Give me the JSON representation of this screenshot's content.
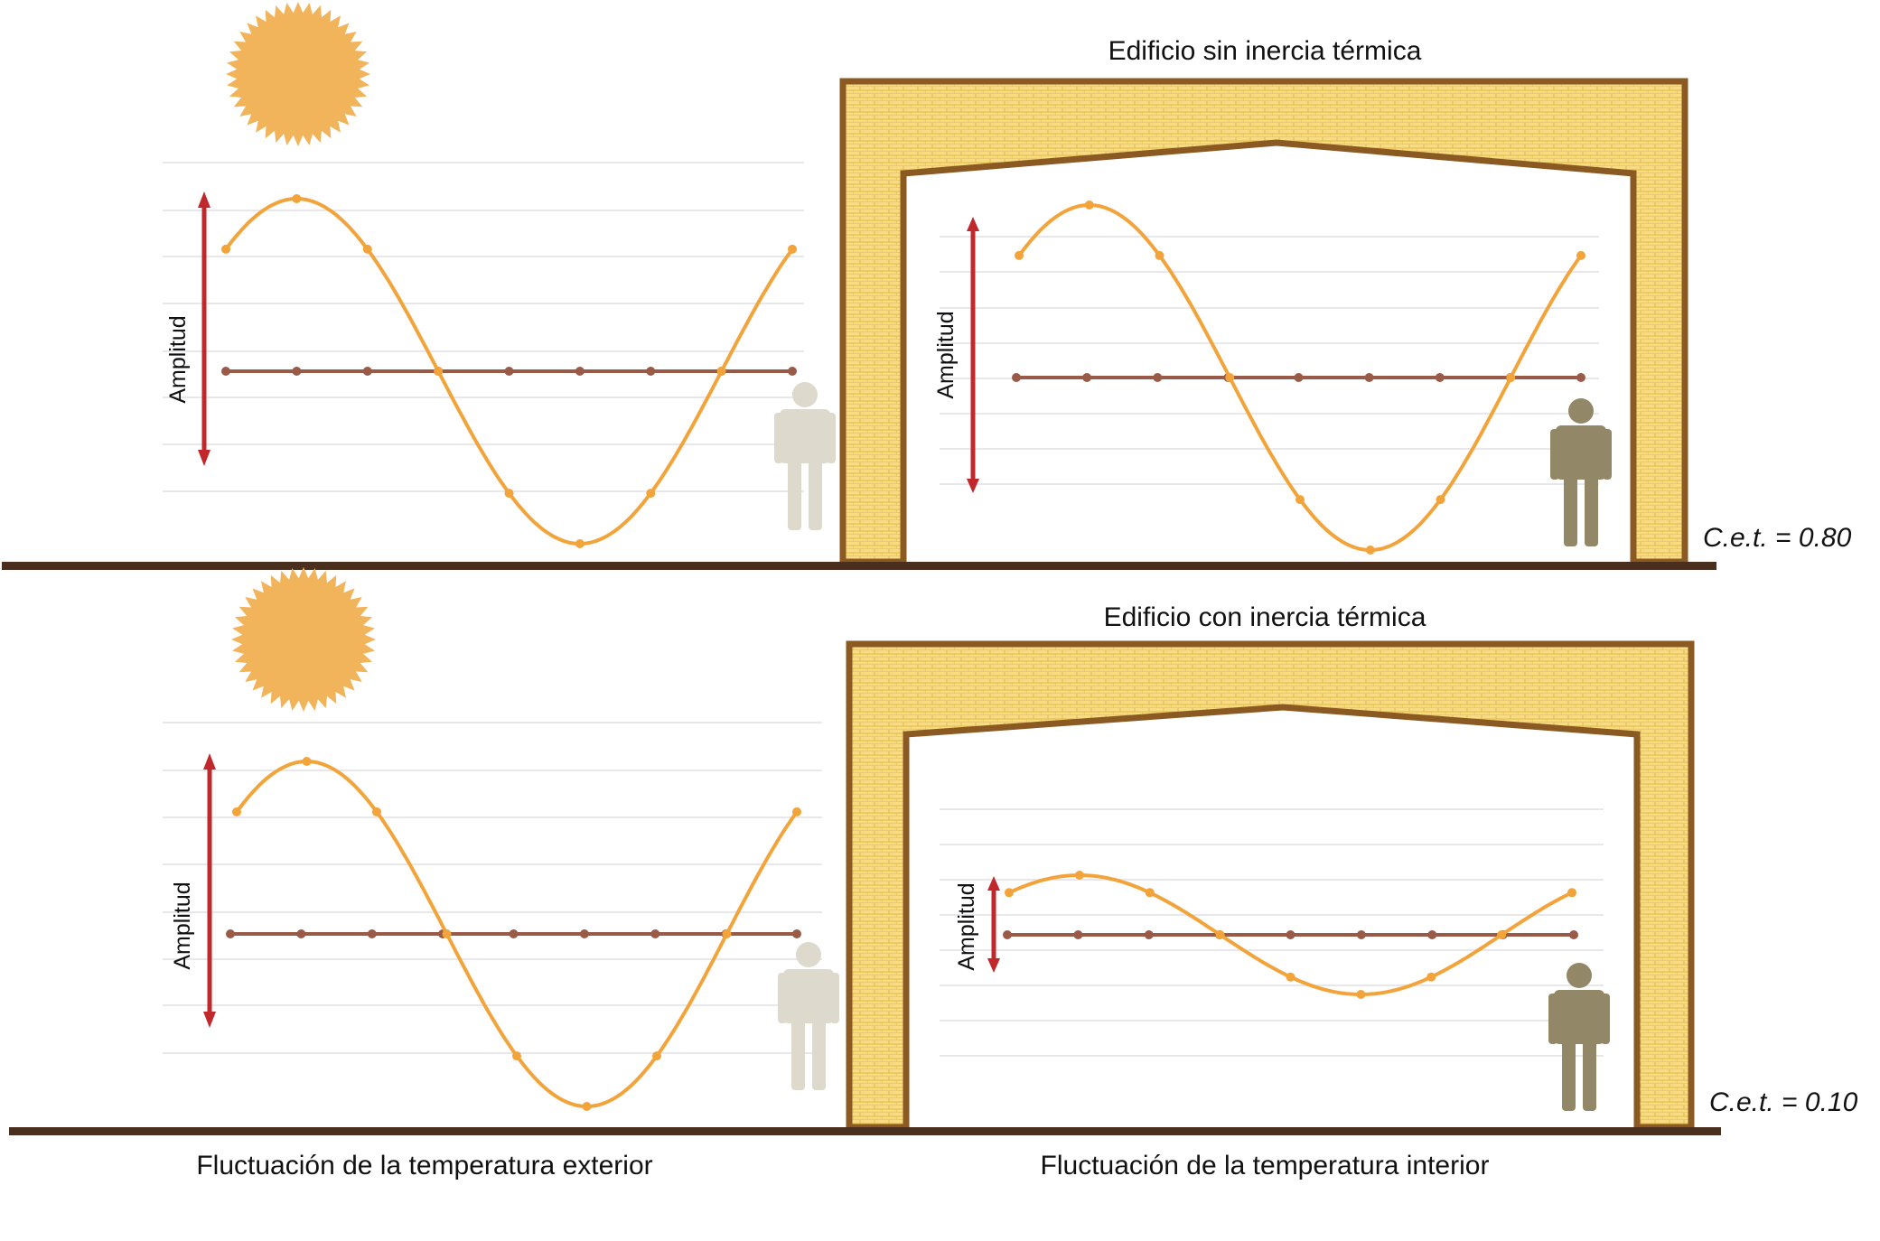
{
  "top_row": {
    "building_title": "Edificio sin inercia térmica",
    "outdoor_axis_label": "Amplitud",
    "indoor_axis_label": "Amplitud",
    "cet": "C.e.t. = 0.80"
  },
  "bottom_row": {
    "building_title": "Edificio con inercia térmica",
    "outdoor_axis_label": "Amplitud",
    "indoor_axis_label": "Amplitud",
    "cet": "C.e.t. = 0.10"
  },
  "captions": {
    "exterior": "Fluctuación de la temperatura exterior",
    "interior": "Fluctuación de la temperatura interior"
  },
  "colors": {
    "wave": "#f2a43a",
    "mean_line": "#9a5a48",
    "amplitude_arrow": "#c0282c",
    "wall_fill": "#f7dc84",
    "wall_outline": "#8b5a22",
    "ground": "#4a2e1e",
    "sun": "#f2b45a",
    "person_outdoor": "#ddd9cc",
    "person_indoor": "#928766",
    "gridline": "#e8e8ec"
  },
  "icons": {
    "sun": "sun-icon",
    "person": "person-icon"
  }
}
